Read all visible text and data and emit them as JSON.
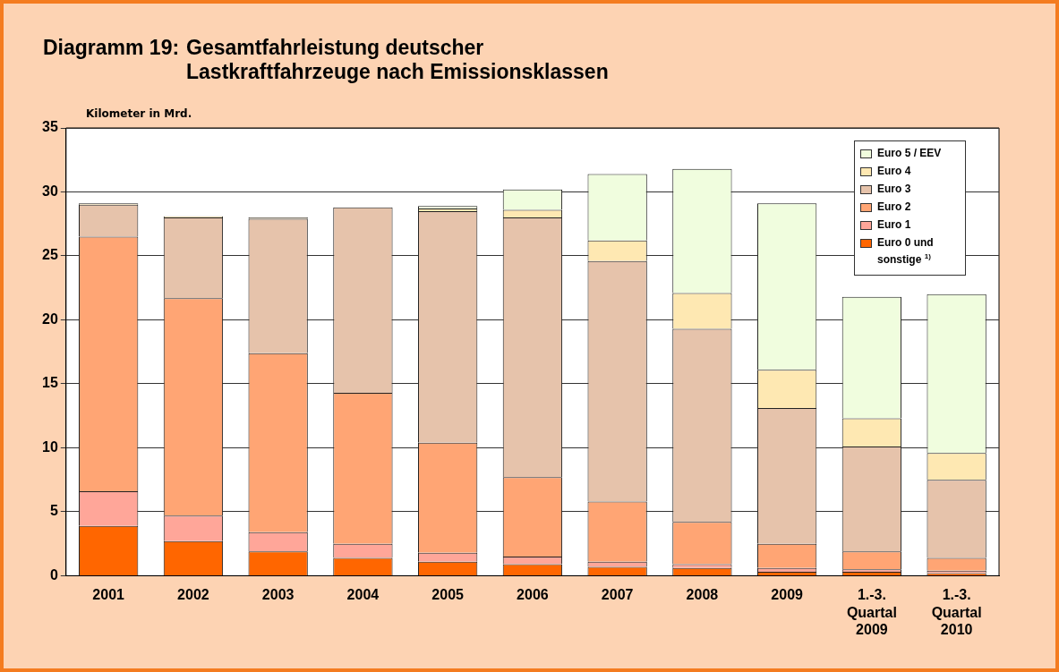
{
  "chart_data": {
    "type": "bar",
    "title": "Diagramm 19:  Gesamtfahrleistung deutscher Lastkraftfahrzeuge nach Emissionsklassen",
    "ylabel": "Kilometer in Mrd.",
    "categories": [
      "2001",
      "2002",
      "2003",
      "2004",
      "2005",
      "2006",
      "2007",
      "2008",
      "2009",
      "1.-3. Quartal 2009",
      "1.-3. Quartal 2010"
    ],
    "stacked": true,
    "ylim": [
      0,
      35
    ],
    "yticks": [
      0,
      5,
      10,
      15,
      20,
      25,
      30,
      35
    ],
    "grid": "y",
    "legend": "top right",
    "series": [
      {
        "name": "Euro 0 und sonstige $^{1)}$",
        "color": "#ff6600",
        "values": [
          3.9,
          2.7,
          1.9,
          1.4,
          1.1,
          0.9,
          0.7,
          0.6,
          0.3,
          0.3,
          0.2
        ]
      },
      {
        "name": "Euro 1",
        "color": "#ffa699",
        "values": [
          2.7,
          2.0,
          1.5,
          1.1,
          0.7,
          0.6,
          0.4,
          0.3,
          0.3,
          0.2,
          0.2
        ]
      },
      {
        "name": "Euro 2",
        "color": "#ffa574",
        "values": [
          19.9,
          17.0,
          14.0,
          11.8,
          8.6,
          6.2,
          4.7,
          3.3,
          1.9,
          1.4,
          1.0
        ]
      },
      {
        "name": "Euro 3",
        "color": "#e6c3ab",
        "values": [
          2.5,
          6.3,
          10.5,
          14.5,
          18.1,
          20.3,
          18.8,
          15.1,
          10.6,
          8.2,
          6.1
        ]
      },
      {
        "name": "Euro 4",
        "color": "#fee8b2",
        "values": [
          0.1,
          0.1,
          0.1,
          0,
          0.2,
          0.6,
          1.6,
          2.8,
          3.0,
          2.2,
          2.1
        ]
      },
      {
        "name": "Euro 5 / EEV",
        "color": "#f0fdde",
        "values": [
          0,
          0,
          0,
          0,
          0.2,
          1.6,
          5.2,
          9.7,
          13.0,
          9.5,
          12.4
        ]
      }
    ]
  }
}
